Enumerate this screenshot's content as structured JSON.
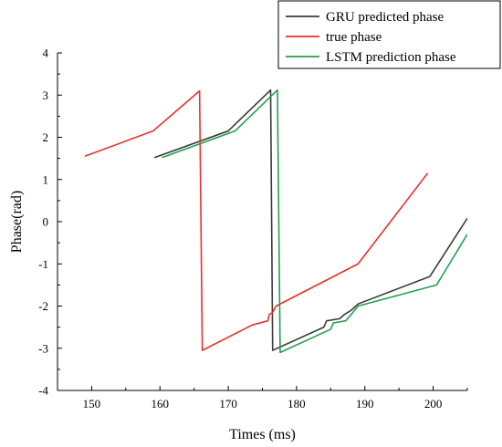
{
  "chart_data": {
    "type": "line",
    "xlabel": "Times (ms)",
    "ylabel": "Phase(rad)",
    "xlim": [
      145,
      205
    ],
    "ylim": [
      -4,
      4
    ],
    "x_ticks": [
      150,
      160,
      170,
      180,
      190,
      200
    ],
    "y_ticks": [
      -4,
      -3,
      -2,
      -1,
      0,
      1,
      2,
      3,
      4
    ],
    "grid": false,
    "legend_position": "top-right",
    "series": [
      {
        "name": "GRU predicted phase",
        "color": "#3a3a3a",
        "points": [
          [
            159.2,
            1.52
          ],
          [
            170.0,
            2.15
          ],
          [
            176.2,
            3.12
          ],
          [
            176.5,
            -3.05
          ],
          [
            184.0,
            -2.5
          ],
          [
            184.4,
            -2.35
          ],
          [
            186.3,
            -2.3
          ],
          [
            187.0,
            -2.2
          ],
          [
            188.0,
            -2.1
          ],
          [
            189.0,
            -1.95
          ],
          [
            199.5,
            -1.3
          ],
          [
            205.0,
            0.08
          ]
        ]
      },
      {
        "name": "true phase",
        "color": "#e8302a",
        "points": [
          [
            149.0,
            1.55
          ],
          [
            159.0,
            2.15
          ],
          [
            165.8,
            3.1
          ],
          [
            166.2,
            -3.05
          ],
          [
            173.5,
            -2.45
          ],
          [
            175.8,
            -2.35
          ],
          [
            176.0,
            -2.2
          ],
          [
            176.5,
            -2.15
          ],
          [
            177.0,
            -2.0
          ],
          [
            189.0,
            -1.0
          ],
          [
            199.2,
            1.15
          ]
        ]
      },
      {
        "name": "LSTM prediction phase",
        "color": "#22a050",
        "points": [
          [
            160.3,
            1.52
          ],
          [
            171.0,
            2.15
          ],
          [
            177.2,
            3.12
          ],
          [
            177.6,
            -3.1
          ],
          [
            185.0,
            -2.55
          ],
          [
            185.4,
            -2.4
          ],
          [
            187.2,
            -2.35
          ],
          [
            188.0,
            -2.2
          ],
          [
            189.0,
            -2.0
          ],
          [
            200.5,
            -1.5
          ],
          [
            205.0,
            -0.3
          ]
        ]
      }
    ]
  }
}
